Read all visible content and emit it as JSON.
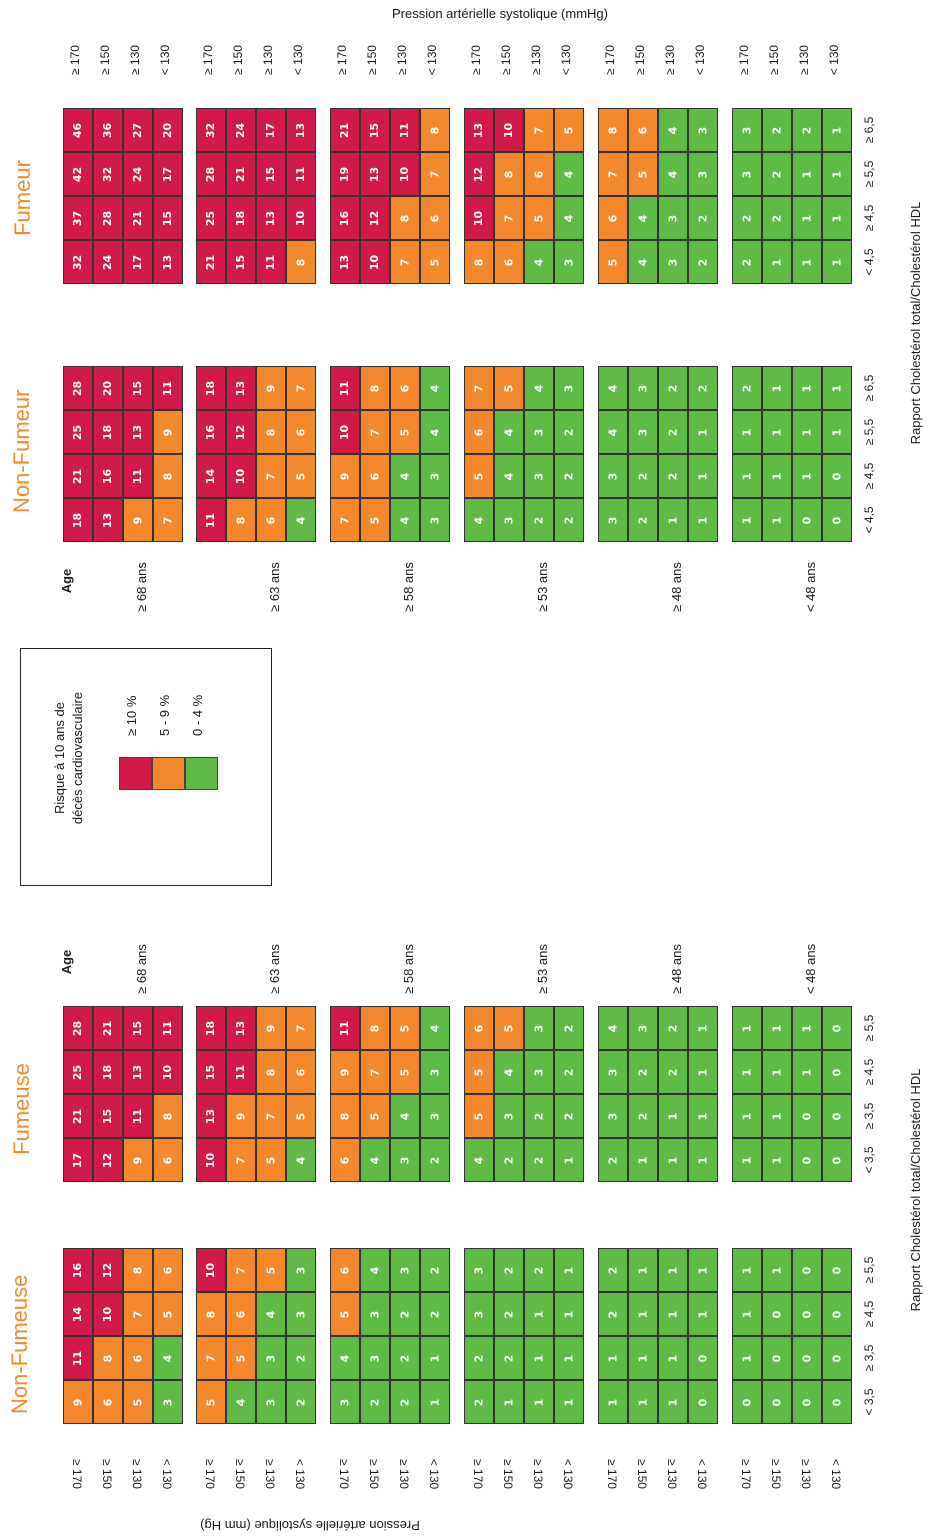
{
  "chart_data": {
    "type": "heatmap",
    "legend": {
      "title_line1": "Risque à 10 ans de",
      "title_line2": "décès cardiovasculaire",
      "items": [
        {
          "label": "≥ 10 %",
          "color": "#d11a4a"
        },
        {
          "label": "5 - 9 %",
          "color": "#f4882c"
        },
        {
          "label": "0 - 4 %",
          "color": "#5fba46"
        }
      ]
    },
    "axis_labels": {
      "top_bp": "Pression artérielle systolique (mmHg)",
      "bottom_bp": "Pression artérielle systolique (mm Hg)",
      "cholesterol": "Rapport Cholestérol total/Cholestérol HDL",
      "age": "Age"
    },
    "bp_levels": [
      "≥ 170",
      "≥ 150",
      "≥ 130",
      "< 130"
    ],
    "age_groups": [
      "≥ 68 ans",
      "≥ 63 ans",
      "≥ 58 ans",
      "≥ 53 ans",
      "≥ 48 ans",
      "< 48 ans"
    ],
    "men": {
      "chol_levels": [
        "< 4,5",
        "≥ 4,5",
        "≥ 5,5",
        "≥ 6,5"
      ],
      "non_smoker_title": "Non-Fumeur",
      "smoker_title": "Fumeur",
      "non_smoker": [
        [
          [
            18,
            21,
            25,
            28
          ],
          [
            13,
            16,
            18,
            20
          ],
          [
            9,
            11,
            13,
            15
          ],
          [
            7,
            8,
            9,
            11
          ]
        ],
        [
          [
            11,
            14,
            16,
            18
          ],
          [
            8,
            10,
            12,
            13
          ],
          [
            6,
            7,
            8,
            9
          ],
          [
            4,
            5,
            6,
            7
          ]
        ],
        [
          [
            7,
            9,
            10,
            11
          ],
          [
            5,
            6,
            7,
            8
          ],
          [
            4,
            4,
            5,
            6
          ],
          [
            3,
            3,
            4,
            4
          ]
        ],
        [
          [
            4,
            5,
            6,
            7
          ],
          [
            3,
            4,
            4,
            5
          ],
          [
            2,
            3,
            3,
            4
          ],
          [
            2,
            2,
            2,
            3
          ]
        ],
        [
          [
            3,
            3,
            4,
            4
          ],
          [
            2,
            2,
            3,
            3
          ],
          [
            1,
            2,
            2,
            2
          ],
          [
            1,
            1,
            1,
            2
          ]
        ],
        [
          [
            1,
            1,
            1,
            2
          ],
          [
            1,
            1,
            1,
            1
          ],
          [
            0,
            1,
            1,
            1
          ],
          [
            0,
            0,
            1,
            1
          ]
        ]
      ],
      "smoker": [
        [
          [
            32,
            37,
            42,
            46
          ],
          [
            24,
            28,
            32,
            36
          ],
          [
            17,
            21,
            24,
            27
          ],
          [
            13,
            15,
            17,
            20
          ]
        ],
        [
          [
            21,
            25,
            28,
            32
          ],
          [
            15,
            18,
            21,
            24
          ],
          [
            11,
            13,
            15,
            17
          ],
          [
            8,
            10,
            11,
            13
          ]
        ],
        [
          [
            13,
            16,
            19,
            21
          ],
          [
            10,
            12,
            13,
            15
          ],
          [
            7,
            8,
            10,
            11
          ],
          [
            5,
            6,
            7,
            8
          ]
        ],
        [
          [
            8,
            10,
            12,
            13
          ],
          [
            6,
            7,
            8,
            10
          ],
          [
            4,
            5,
            6,
            7
          ],
          [
            3,
            4,
            4,
            5
          ]
        ],
        [
          [
            5,
            6,
            7,
            8
          ],
          [
            4,
            4,
            5,
            6
          ],
          [
            3,
            3,
            4,
            4
          ],
          [
            2,
            2,
            3,
            3
          ]
        ],
        [
          [
            2,
            2,
            3,
            3
          ],
          [
            1,
            2,
            2,
            2
          ],
          [
            1,
            1,
            1,
            2
          ],
          [
            1,
            1,
            1,
            1
          ]
        ]
      ]
    },
    "women": {
      "chol_levels": [
        "< 3,5",
        "≥ 3,5",
        "≥ 4,5",
        "≥ 5,5"
      ],
      "non_smoker_title": "Non-Fumeuse",
      "smoker_title": "Fumeuse",
      "non_smoker": [
        [
          [
            9,
            11,
            14,
            16
          ],
          [
            6,
            8,
            10,
            12
          ],
          [
            5,
            6,
            7,
            8
          ],
          [
            3,
            4,
            5,
            6
          ]
        ],
        [
          [
            5,
            7,
            8,
            10
          ],
          [
            4,
            5,
            6,
            7
          ],
          [
            3,
            3,
            4,
            5
          ],
          [
            2,
            2,
            3,
            3
          ]
        ],
        [
          [
            3,
            4,
            5,
            6
          ],
          [
            2,
            3,
            3,
            4
          ],
          [
            2,
            2,
            2,
            3
          ],
          [
            1,
            1,
            2,
            2
          ]
        ],
        [
          [
            2,
            2,
            3,
            3
          ],
          [
            1,
            2,
            2,
            2
          ],
          [
            1,
            1,
            1,
            2
          ],
          [
            1,
            1,
            1,
            1
          ]
        ],
        [
          [
            1,
            1,
            2,
            2
          ],
          [
            1,
            1,
            1,
            1
          ],
          [
            1,
            1,
            1,
            1
          ],
          [
            0,
            0,
            1,
            1
          ]
        ],
        [
          [
            0,
            1,
            1,
            1
          ],
          [
            0,
            0,
            0,
            1
          ],
          [
            0,
            0,
            0,
            0
          ],
          [
            0,
            0,
            0,
            0
          ]
        ]
      ],
      "smoker": [
        [
          [
            17,
            21,
            25,
            28
          ],
          [
            12,
            15,
            18,
            21
          ],
          [
            9,
            11,
            13,
            15
          ],
          [
            6,
            8,
            10,
            11
          ]
        ],
        [
          [
            10,
            13,
            15,
            18
          ],
          [
            7,
            9,
            11,
            13
          ],
          [
            5,
            7,
            8,
            9
          ],
          [
            4,
            5,
            6,
            7
          ]
        ],
        [
          [
            6,
            8,
            9,
            11
          ],
          [
            4,
            5,
            7,
            8
          ],
          [
            3,
            4,
            5,
            5
          ],
          [
            2,
            3,
            3,
            4
          ]
        ],
        [
          [
            4,
            5,
            5,
            6
          ],
          [
            2,
            3,
            4,
            5
          ],
          [
            2,
            2,
            3,
            3
          ],
          [
            1,
            2,
            2,
            2
          ]
        ],
        [
          [
            2,
            3,
            3,
            4
          ],
          [
            1,
            2,
            2,
            3
          ],
          [
            1,
            1,
            2,
            2
          ],
          [
            1,
            1,
            1,
            1
          ]
        ],
        [
          [
            1,
            1,
            1,
            1
          ],
          [
            1,
            1,
            1,
            1
          ],
          [
            0,
            0,
            1,
            1
          ],
          [
            0,
            0,
            0,
            0
          ]
        ]
      ]
    }
  }
}
